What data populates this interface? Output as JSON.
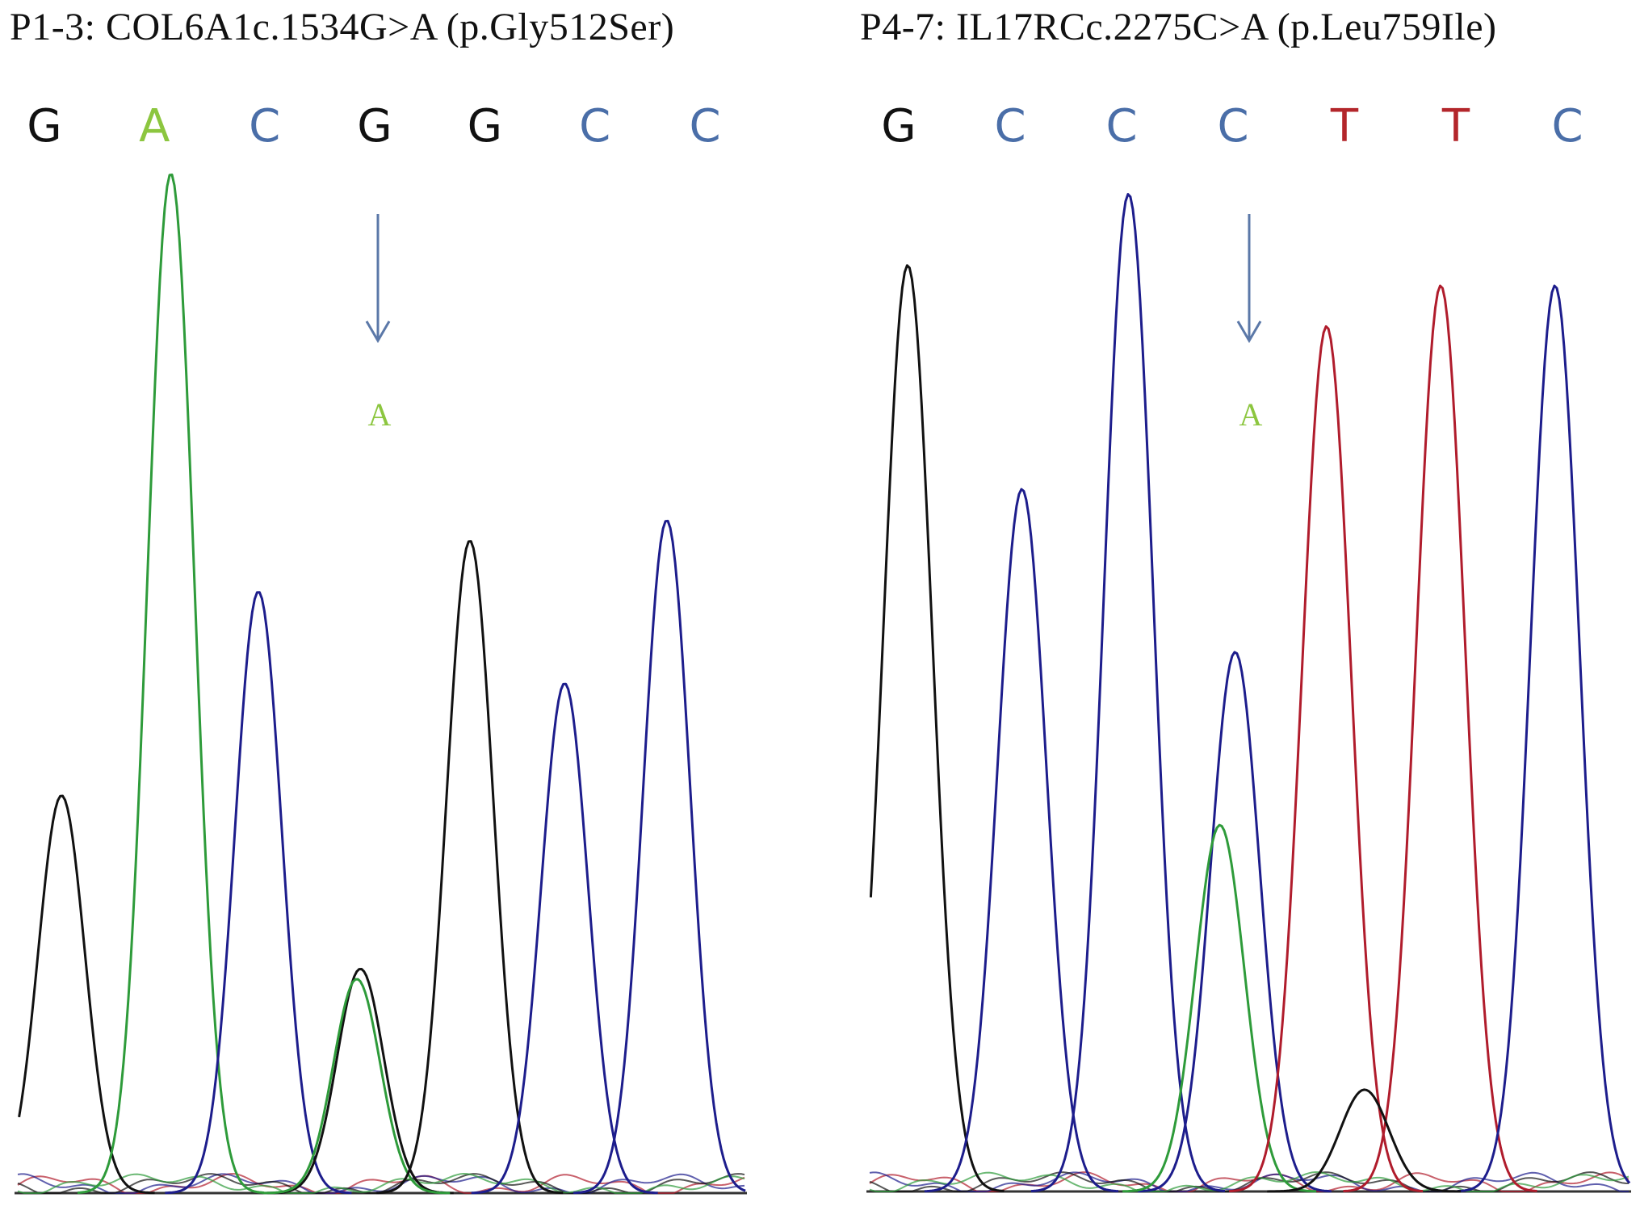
{
  "colors": {
    "G": "#111111",
    "A": "#8cc63f",
    "C": "#4a6ea8",
    "T": "#b3262b"
  },
  "trace_colors": {
    "G": "#111111",
    "A": "#2e9b3a",
    "C": "#1d1d8c",
    "T": "#b01c2c"
  },
  "arrow_color": "#5b78a8",
  "panels": [
    {
      "id": "left",
      "title": "P1-3: COL6A1c.1534G>A (p.Gly512Ser)",
      "bases": [
        "G",
        "A",
        "C",
        "G",
        "G",
        "C",
        "C"
      ],
      "variant_base": "A",
      "variant_position": 4,
      "peaks": [
        {
          "base": "G",
          "center": 0.06,
          "height": 0.39
        },
        {
          "base": "A",
          "center": 0.21,
          "height": 1.0
        },
        {
          "base": "C",
          "center": 0.33,
          "height": 0.59
        },
        {
          "base": "G",
          "center": 0.47,
          "height": 0.22
        },
        {
          "base": "A",
          "center": 0.465,
          "height": 0.21
        },
        {
          "base": "G",
          "center": 0.62,
          "height": 0.64
        },
        {
          "base": "C",
          "center": 0.75,
          "height": 0.5
        },
        {
          "base": "C",
          "center": 0.89,
          "height": 0.66
        }
      ]
    },
    {
      "id": "right",
      "title": "P4-7: IL17RCc.2275C>A (p.Leu759Ile)",
      "bases": [
        "G",
        "C",
        "C",
        "C",
        "T",
        "T",
        "C"
      ],
      "variant_base": "A",
      "variant_position": 4,
      "peaks": [
        {
          "base": "G",
          "center": 0.05,
          "height": 0.91
        },
        {
          "base": "C",
          "center": 0.2,
          "height": 0.69
        },
        {
          "base": "C",
          "center": 0.34,
          "height": 0.98
        },
        {
          "base": "C",
          "center": 0.48,
          "height": 0.53
        },
        {
          "base": "A",
          "center": 0.46,
          "height": 0.36
        },
        {
          "base": "T",
          "center": 0.6,
          "height": 0.85
        },
        {
          "base": "T",
          "center": 0.75,
          "height": 0.89
        },
        {
          "base": "C",
          "center": 0.9,
          "height": 0.89
        },
        {
          "base": "G",
          "center": 0.65,
          "height": 0.1
        }
      ]
    }
  ]
}
